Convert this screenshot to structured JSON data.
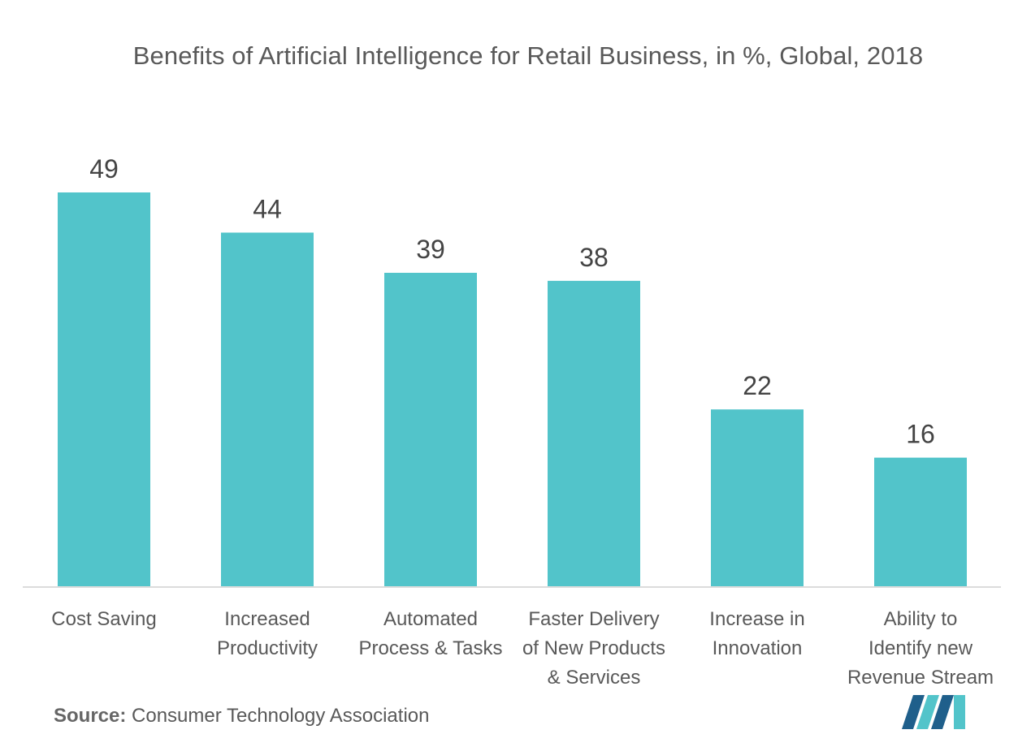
{
  "chart_data": {
    "type": "bar",
    "title": "Benefits of Artificial Intelligence for Retail Business, in %, Global, 2018",
    "categories": [
      [
        "Cost Saving"
      ],
      [
        "Increased",
        "Productivity"
      ],
      [
        "Automated",
        "Process & Tasks"
      ],
      [
        "Faster Delivery",
        "of New Products",
        "& Services"
      ],
      [
        "Increase in",
        "Innovation"
      ],
      [
        "Ability to",
        "Identify new",
        "Revenue Stream"
      ]
    ],
    "values": [
      49,
      44,
      39,
      38,
      22,
      16
    ],
    "xlabel": "",
    "ylabel": "",
    "ylim": [
      0,
      49
    ],
    "bar_color": "#52C4CA",
    "grid": false,
    "legend": "none"
  },
  "source": {
    "label": "Source:",
    "text": "Consumer Technology Association"
  },
  "colors": {
    "bar": "#52C4CA",
    "axis": "#d0d0d0",
    "text": "#595959",
    "logo_dark": "#1f5f8b",
    "logo_light": "#52C4CA"
  }
}
